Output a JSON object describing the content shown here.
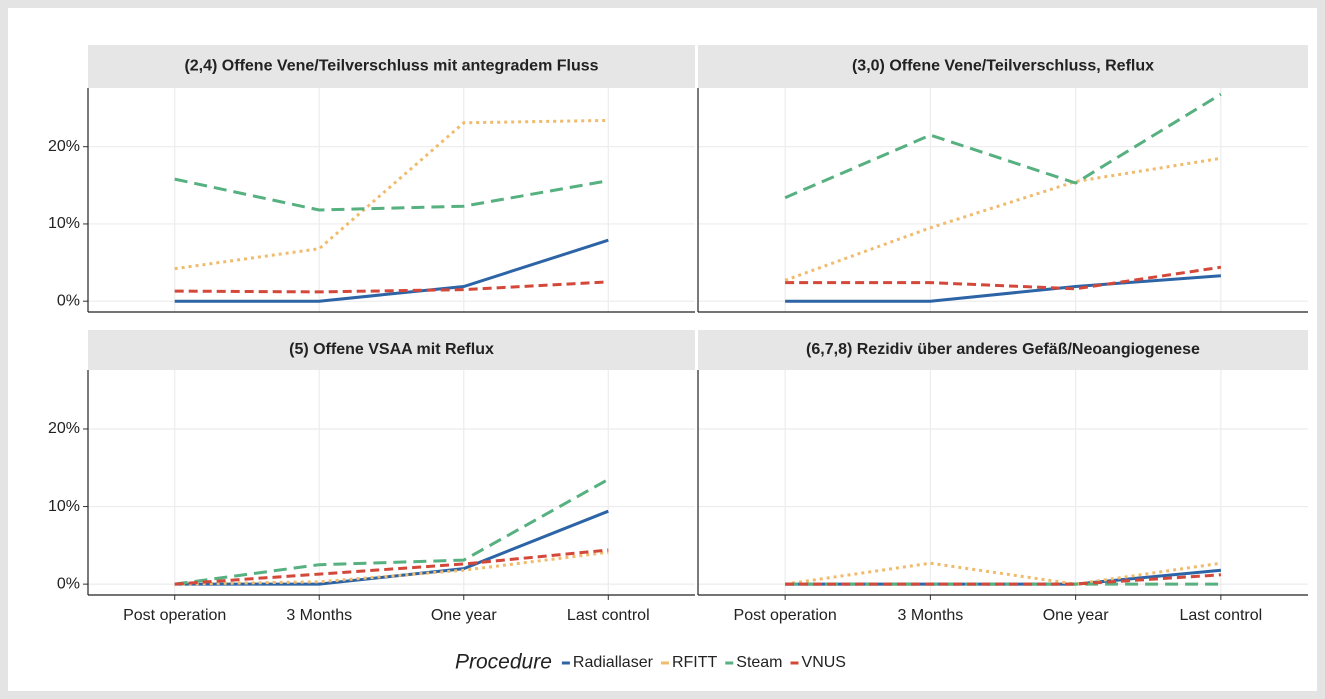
{
  "chart_data": {
    "type": "line",
    "categories": [
      "Post operation",
      "3 Months",
      "One year",
      "Last control"
    ],
    "ylim": [
      -1.4,
      27.6
    ],
    "yticks": [
      {
        "value": 0,
        "label": "0%"
      },
      {
        "value": 10,
        "label": "10%"
      },
      {
        "value": 20,
        "label": "20%"
      }
    ],
    "grid": true,
    "legend_title": "Procedure",
    "series": [
      {
        "name": "Radiallaser",
        "color": "#2c64a6",
        "dash": "solid"
      },
      {
        "name": "RFITT",
        "color": "#f0bb6c",
        "dash": "dotted"
      },
      {
        "name": "Steam",
        "color": "#56b07f",
        "dash": "longdash"
      },
      {
        "name": "VNUS",
        "color": "#d4483a",
        "dash": "dashed"
      }
    ],
    "facets": [
      {
        "title": "(2,4) Offene Vene/Teilverschluss mit antegradem Fluss",
        "values": [
          [
            0,
            0,
            1.9,
            7.9
          ],
          [
            4.2,
            6.8,
            23.1,
            23.4
          ],
          [
            15.8,
            11.8,
            12.3,
            15.6
          ],
          [
            1.3,
            1.2,
            1.5,
            2.5
          ]
        ]
      },
      {
        "title": "(3,0) Offene Vene/Teilverschluss, Reflux",
        "values": [
          [
            0,
            0,
            1.9,
            3.3
          ],
          [
            2.7,
            9.5,
            15.5,
            18.5
          ],
          [
            13.4,
            21.5,
            15.3,
            26.8
          ],
          [
            2.4,
            2.4,
            1.6,
            4.4
          ]
        ]
      },
      {
        "title": "(5) Offene VSAA mit Reflux",
        "values": [
          [
            0,
            0,
            2.0,
            9.4
          ],
          [
            0,
            0.3,
            1.8,
            4.1
          ],
          [
            0,
            2.5,
            3.1,
            13.5
          ],
          [
            0,
            1.3,
            2.6,
            4.4
          ]
        ]
      },
      {
        "title": "(6,7,8) Rezidiv über anderes Gefäß/Neoangiogenese",
        "values": [
          [
            0,
            0,
            0,
            1.8
          ],
          [
            0,
            2.7,
            0,
            2.7
          ],
          [
            0,
            0,
            0,
            0
          ],
          [
            0,
            0,
            0,
            1.2
          ]
        ]
      }
    ]
  }
}
